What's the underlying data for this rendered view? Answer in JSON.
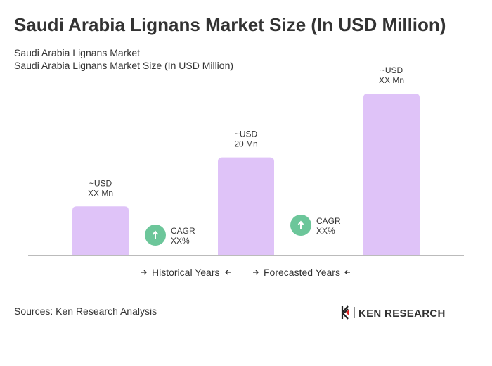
{
  "chart_data": {
    "type": "bar",
    "title": "Saudi Arabia Lignans Market Size (In USD Million)",
    "subtitle": [
      "Saudi Arabia Lignans Market",
      "Saudi Arabia Lignans Market Size (In USD Million)"
    ],
    "categories": [
      null,
      null,
      null
    ],
    "values": [
      10,
      20,
      33
    ],
    "value_labels": [
      "~USD\nXX Mn",
      "~USD\n20 Mn",
      "~USD\nXX Mn"
    ],
    "color": "#dfc3f8",
    "annotations": [
      "CAGR\nXX%",
      "CAGR\nXX%"
    ],
    "legend": [
      "Historical Years",
      "Forecasted Years"
    ],
    "source": "Sources: Ken Research Analysis",
    "logo": "KEN RESEARCH"
  }
}
